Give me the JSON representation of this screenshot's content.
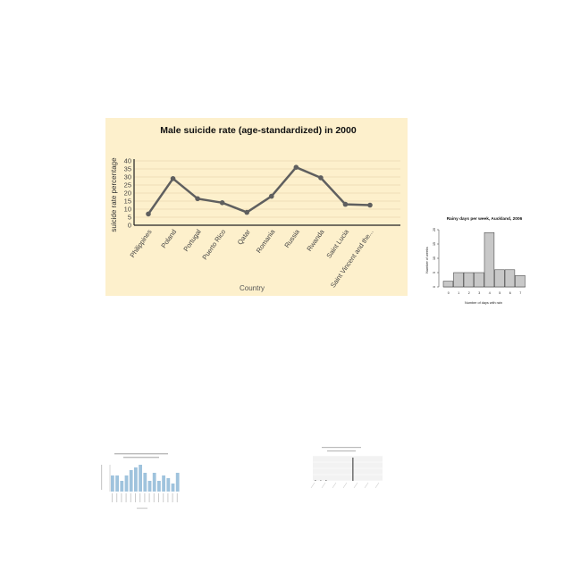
{
  "main_chart": {
    "chart_data": {
      "type": "line",
      "title": "Male suicide rate (age-standardized) in 2000",
      "xlabel": "Country",
      "ylabel": "suicide rate percentage",
      "categories": [
        "Philippines",
        "Poland",
        "Portugal",
        "Puerto Rico",
        "Qatar",
        "Romania",
        "Russia",
        "Rwanda",
        "Saint Lucia",
        "Saint Vincent and the..."
      ],
      "values": [
        7,
        29,
        16.5,
        14,
        8,
        18,
        36,
        29.5,
        13,
        12.5
      ],
      "ylim": [
        0,
        40
      ],
      "yticks": [
        0,
        5,
        10,
        15,
        20,
        25,
        30,
        35,
        40
      ],
      "grid": true,
      "colors": {
        "background": "#fdf0cc",
        "line": "#5f5f5f",
        "grid": "#e9d9b0"
      }
    }
  },
  "rain_chart": {
    "chart_data": {
      "type": "bar",
      "title": "Rainy days per week, Auckland, 2006",
      "xlabel": "Number of days with rain",
      "ylabel": "Number of weeks",
      "categories": [
        "0",
        "1",
        "2",
        "3",
        "4",
        "5",
        "6",
        "7"
      ],
      "values": [
        2,
        5,
        5,
        5,
        19,
        6,
        6,
        4
      ],
      "ylim": [
        0,
        20
      ],
      "yticks": [
        0,
        5,
        10,
        15,
        20
      ],
      "colors": {
        "bar": "#c8c8c8",
        "edge": "#333333"
      }
    }
  },
  "mini_bar_chart": {
    "chart_data": {
      "type": "bar",
      "values": [
        6,
        6,
        4,
        6,
        8,
        9,
        10,
        7,
        4,
        7,
        4,
        6,
        5,
        3,
        7
      ],
      "colors": {
        "bar": "#9fc3dd"
      }
    }
  },
  "mini_malaria_chart": {
    "chart_data": {
      "type": "bar",
      "values": [
        0.3,
        0.2,
        0.3,
        0,
        0,
        0,
        0,
        10,
        0,
        0,
        0,
        0,
        0
      ],
      "colors": {
        "bar": "#777777",
        "background": "#f2f2f2"
      }
    }
  }
}
